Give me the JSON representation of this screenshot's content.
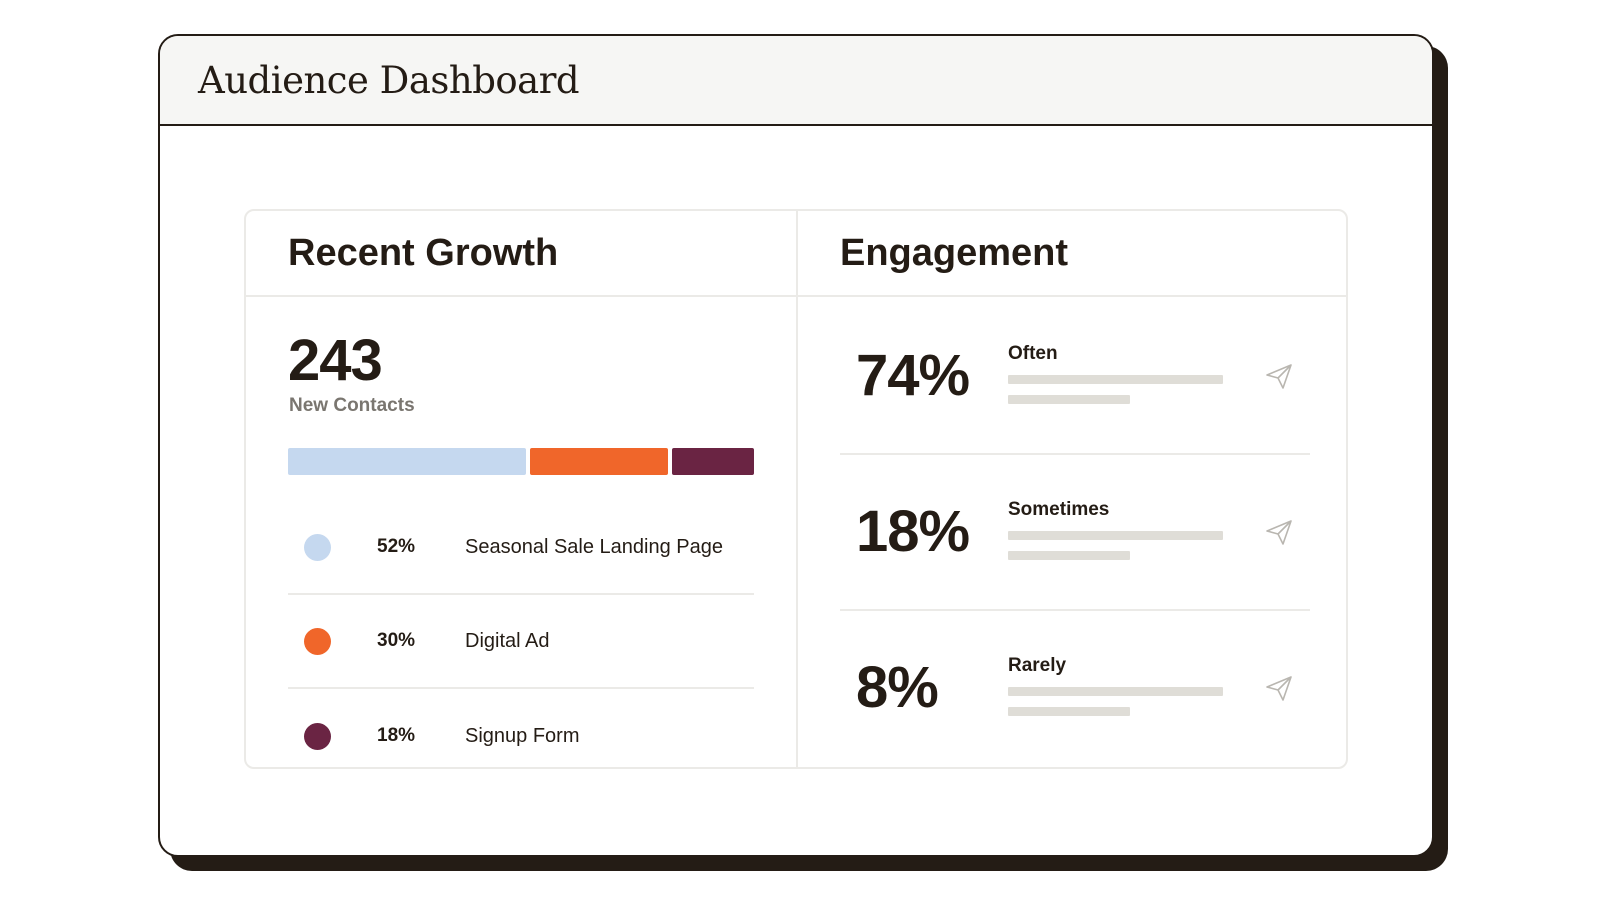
{
  "window": {
    "title": "Audience Dashboard"
  },
  "growth": {
    "title": "Recent Growth",
    "total": "243",
    "total_label": "New Contacts",
    "segments": [
      {
        "percent": "52%",
        "value": 52,
        "label": "Seasonal Sale Landing Page",
        "color": "#c5d8ef"
      },
      {
        "percent": "30%",
        "value": 30,
        "label": "Digital Ad",
        "color": "#f0662a"
      },
      {
        "percent": "18%",
        "value": 18,
        "label": "Signup Form",
        "color": "#6a2443"
      }
    ]
  },
  "engagement": {
    "title": "Engagement",
    "rows": [
      {
        "percent": "74%",
        "label": "Often",
        "icon": "send-icon"
      },
      {
        "percent": "18%",
        "label": "Sometimes",
        "icon": "send-icon"
      },
      {
        "percent": "8%",
        "label": "Rarely",
        "icon": "send-icon"
      }
    ]
  }
}
